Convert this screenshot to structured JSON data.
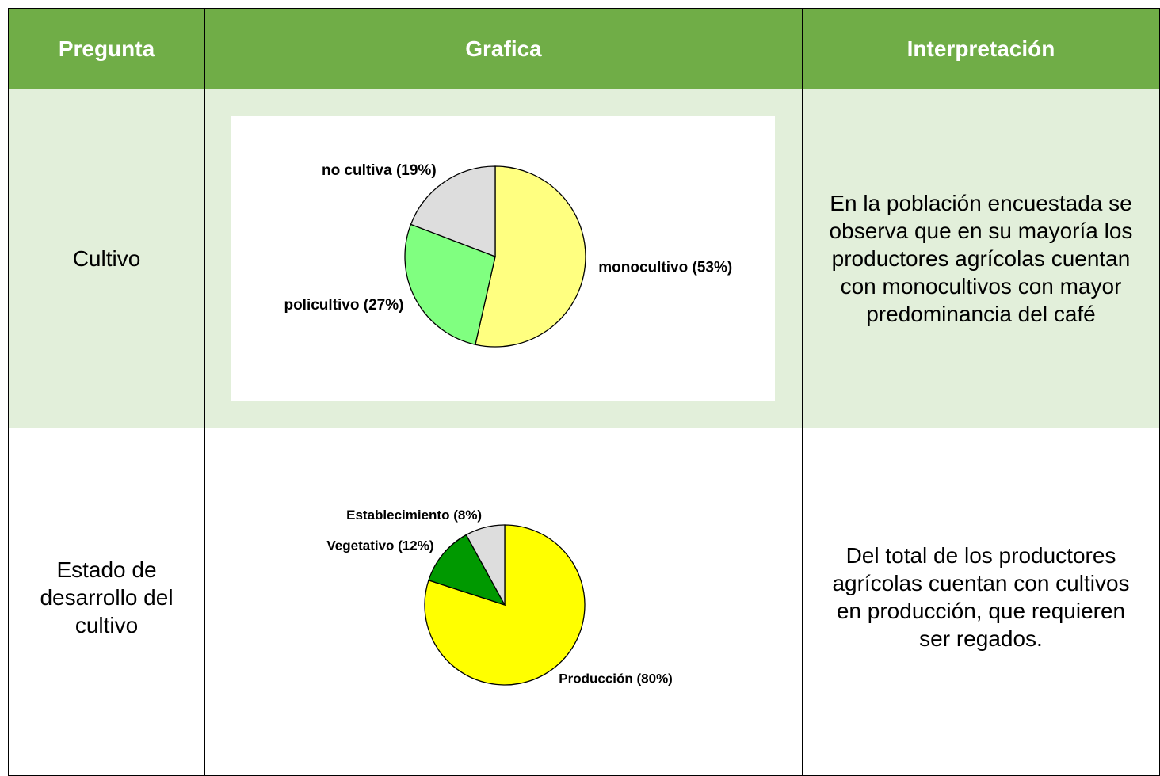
{
  "table": {
    "header": [
      "Pregunta",
      "Grafica",
      "Interpretación"
    ],
    "rows": [
      {
        "pregunta": "Cultivo",
        "grafica": {
          "type": "pie",
          "values": [
            53,
            27,
            19
          ],
          "value_labels": [
            "monocultivo (53%)",
            "policultivo (27%)",
            "no cultiva (19%)"
          ],
          "colors": [
            "#ffff80",
            "#80ff80",
            "#dddddd"
          ]
        },
        "interpretacion": "En la población encuestada se observa que en su mayoría los productores agrícolas cuentan con monocultivos con mayor predominancia del café"
      },
      {
        "pregunta": "Estado de desarrollo del cultivo",
        "grafica": {
          "type": "pie",
          "values": [
            80,
            12,
            8
          ],
          "value_labels": [
            "Producción (80%)",
            "Vegetativo (12%)",
            "Establecimiento (8%)"
          ],
          "colors": [
            "#ffff00",
            "#009900",
            "#dddddd"
          ]
        },
        "interpretacion": "Del total de los productores agrícolas cuentan con cultivos en producción, que requieren ser regados."
      }
    ]
  }
}
